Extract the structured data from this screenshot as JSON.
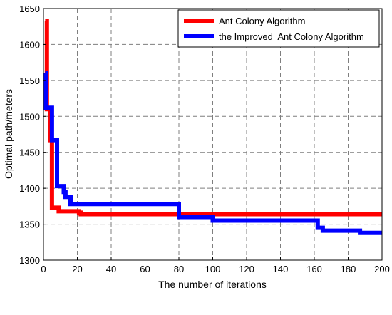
{
  "chart_data": {
    "type": "line",
    "title": "",
    "xlabel": "The number of iterations",
    "ylabel": "Optimal path/meters",
    "xlim": [
      0,
      200
    ],
    "ylim": [
      1300,
      1650
    ],
    "xticks": [
      0,
      20,
      40,
      60,
      80,
      100,
      120,
      140,
      160,
      180,
      200
    ],
    "yticks": [
      1300,
      1350,
      1400,
      1450,
      1500,
      1550,
      1600,
      1650
    ],
    "grid": true,
    "legend_position": "top-right",
    "series": [
      {
        "name": "Ant Colony Algorithm",
        "color": "#ff0000",
        "step": true,
        "points": [
          [
            1,
            1633
          ],
          [
            2,
            1510
          ],
          [
            3,
            1510
          ],
          [
            4,
            1467
          ],
          [
            5,
            1373
          ],
          [
            8,
            1373
          ],
          [
            9,
            1368
          ],
          [
            19,
            1368
          ],
          [
            21,
            1366
          ],
          [
            22,
            1364
          ],
          [
            80,
            1364
          ],
          [
            200,
            1364
          ]
        ]
      },
      {
        "name": "the Improved  Ant Colony Algorithm",
        "color": "#0000ff",
        "step": true,
        "points": [
          [
            1,
            1560
          ],
          [
            1.5,
            1512
          ],
          [
            3,
            1512
          ],
          [
            4,
            1512
          ],
          [
            5,
            1467
          ],
          [
            7,
            1467
          ],
          [
            8,
            1403
          ],
          [
            11,
            1403
          ],
          [
            12,
            1395
          ],
          [
            13,
            1388
          ],
          [
            15,
            1388
          ],
          [
            16,
            1378
          ],
          [
            79,
            1378
          ],
          [
            80,
            1360
          ],
          [
            99,
            1360
          ],
          [
            100,
            1355
          ],
          [
            161,
            1355
          ],
          [
            162,
            1345
          ],
          [
            164,
            1345
          ],
          [
            165,
            1341
          ],
          [
            186,
            1341
          ],
          [
            187,
            1338
          ],
          [
            200,
            1338
          ]
        ]
      }
    ]
  }
}
